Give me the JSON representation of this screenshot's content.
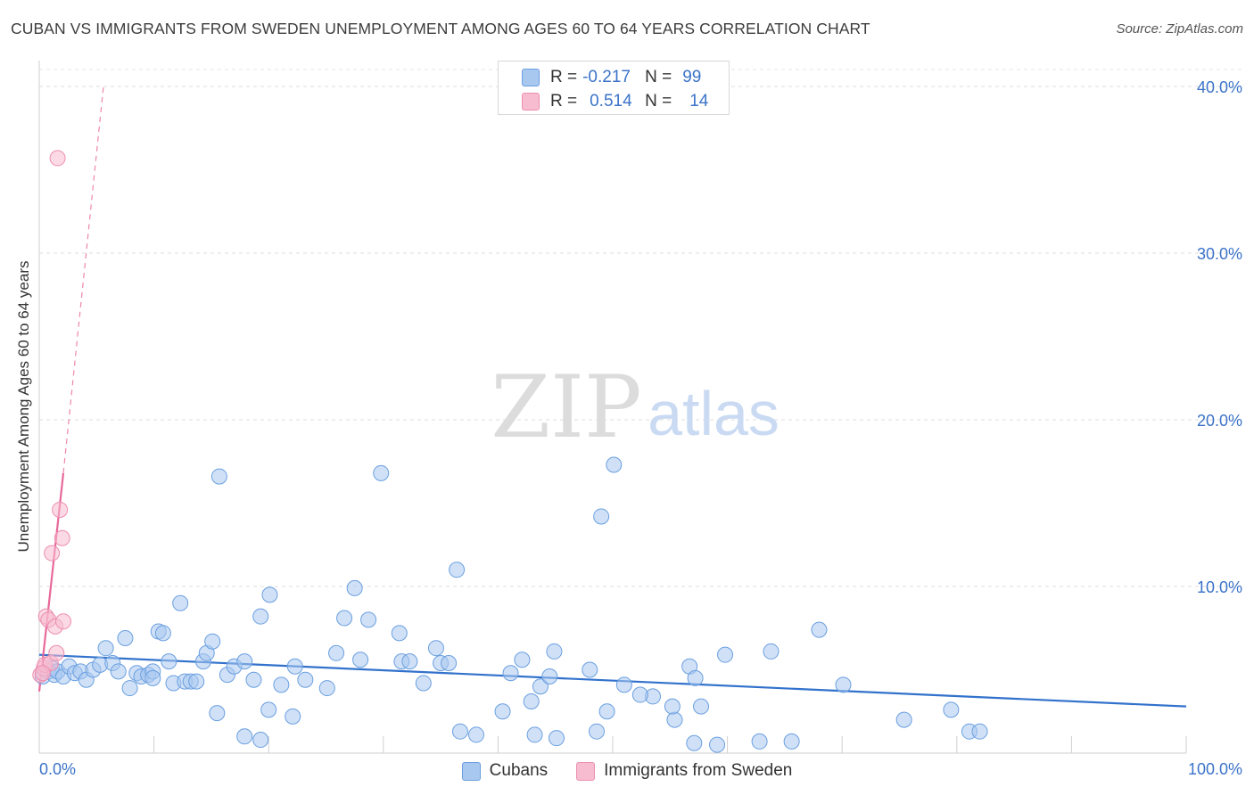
{
  "header": {
    "title": "CUBAN VS IMMIGRANTS FROM SWEDEN UNEMPLOYMENT AMONG AGES 60 TO 64 YEARS CORRELATION CHART",
    "source": "Source: ZipAtlas.com"
  },
  "watermark": {
    "zip": "ZIP",
    "atlas": "atlas"
  },
  "legend": {
    "rows": [
      {
        "r_label": "R =",
        "r_value": "-0.217",
        "n_label": "N =",
        "n_value": "99",
        "color": "#a9c8f0",
        "border": "#6a9fe0"
      },
      {
        "r_label": "R =",
        "r_value": "0.514",
        "n_label": "N =",
        "n_value": "14",
        "color": "#f8bcd0",
        "border": "#ec8fb0"
      }
    ]
  },
  "bottom_legend": {
    "items": [
      {
        "label": "Cubans",
        "color": "#a9c8f0",
        "border": "#6a9fe0"
      },
      {
        "label": "Immigrants from Sweden",
        "color": "#f8bcd0",
        "border": "#ec8fb0"
      }
    ]
  },
  "chart_data": {
    "type": "scatter",
    "title": "CUBAN VS IMMIGRANTS FROM SWEDEN UNEMPLOYMENT AMONG AGES 60 TO 64 YEARS CORRELATION CHART",
    "xlabel": "",
    "ylabel": "Unemployment Among Ages 60 to 64 years",
    "xlim": [
      0,
      100
    ],
    "ylim": [
      0,
      40
    ],
    "x_tick_labels": [
      "0.0%",
      "100.0%"
    ],
    "y_ticks": [
      10,
      20,
      30,
      40
    ],
    "y_tick_labels": [
      "10.0%",
      "20.0%",
      "30.0%",
      "40.0%"
    ],
    "grid": true,
    "series": [
      {
        "name": "Cubans",
        "color": "#a9c8f0",
        "edge": "#6a9fe0",
        "trend": {
          "x": [
            0,
            100
          ],
          "y": [
            5.9,
            2.8
          ],
          "color": "#3272cc"
        },
        "points": [
          [
            0.3,
            4.6
          ],
          [
            0.8,
            4.9
          ],
          [
            1.1,
            5.1
          ],
          [
            1.3,
            4.7
          ],
          [
            1.6,
            4.9
          ],
          [
            2.1,
            4.6
          ],
          [
            2.6,
            5.2
          ],
          [
            3.1,
            4.8
          ],
          [
            3.6,
            4.9
          ],
          [
            4.1,
            4.4
          ],
          [
            4.7,
            5.0
          ],
          [
            5.3,
            5.3
          ],
          [
            5.8,
            6.3
          ],
          [
            6.4,
            5.4
          ],
          [
            6.9,
            4.9
          ],
          [
            7.5,
            6.9
          ],
          [
            7.9,
            3.9
          ],
          [
            8.5,
            4.8
          ],
          [
            8.9,
            4.6
          ],
          [
            9.5,
            4.7
          ],
          [
            9.9,
            4.9
          ],
          [
            10.4,
            7.3
          ],
          [
            10.8,
            7.2
          ],
          [
            11.3,
            5.5
          ],
          [
            11.7,
            4.2
          ],
          [
            12.3,
            9.0
          ],
          [
            12.7,
            4.3
          ],
          [
            13.2,
            4.3
          ],
          [
            13.7,
            4.3
          ],
          [
            14.3,
            5.5
          ],
          [
            14.6,
            6.0
          ],
          [
            15.1,
            6.7
          ],
          [
            15.5,
            2.4
          ],
          [
            15.7,
            16.6
          ],
          [
            16.4,
            4.7
          ],
          [
            17.0,
            5.2
          ],
          [
            17.9,
            5.5
          ],
          [
            18.7,
            4.4
          ],
          [
            19.3,
            8.2
          ],
          [
            20.1,
            9.5
          ],
          [
            21.1,
            4.1
          ],
          [
            22.3,
            5.2
          ],
          [
            23.2,
            4.4
          ],
          [
            25.1,
            3.9
          ],
          [
            25.9,
            6.0
          ],
          [
            26.6,
            8.1
          ],
          [
            27.5,
            9.9
          ],
          [
            28.0,
            5.6
          ],
          [
            28.7,
            8.0
          ],
          [
            29.8,
            16.8
          ],
          [
            31.4,
            7.2
          ],
          [
            31.6,
            5.5
          ],
          [
            32.3,
            5.5
          ],
          [
            33.5,
            4.2
          ],
          [
            34.6,
            6.3
          ],
          [
            35.0,
            5.4
          ],
          [
            35.7,
            5.4
          ],
          [
            36.4,
            11.0
          ],
          [
            41.1,
            4.8
          ],
          [
            42.1,
            5.6
          ],
          [
            42.9,
            3.1
          ],
          [
            43.7,
            4.0
          ],
          [
            44.5,
            4.6
          ],
          [
            44.9,
            6.1
          ],
          [
            48.0,
            5.0
          ],
          [
            49.0,
            14.2
          ],
          [
            50.1,
            17.3
          ],
          [
            51.0,
            4.1
          ],
          [
            53.5,
            3.4
          ],
          [
            55.4,
            2.0
          ],
          [
            56.7,
            5.2
          ],
          [
            57.2,
            4.5
          ],
          [
            57.7,
            2.8
          ],
          [
            59.8,
            5.9
          ],
          [
            63.8,
            6.1
          ],
          [
            68.0,
            7.4
          ],
          [
            70.1,
            4.1
          ],
          [
            75.4,
            2.0
          ],
          [
            79.5,
            2.6
          ],
          [
            81.1,
            1.3
          ],
          [
            82.0,
            1.3
          ],
          [
            55.2,
            2.8
          ],
          [
            9.9,
            4.5
          ],
          [
            22.1,
            2.2
          ],
          [
            19.3,
            0.8
          ],
          [
            17.9,
            1.0
          ],
          [
            20.0,
            2.6
          ],
          [
            36.7,
            1.3
          ],
          [
            38.1,
            1.1
          ],
          [
            40.4,
            2.5
          ],
          [
            43.2,
            1.1
          ],
          [
            45.1,
            0.9
          ],
          [
            48.6,
            1.3
          ],
          [
            49.5,
            2.5
          ],
          [
            52.4,
            3.5
          ],
          [
            57.1,
            0.6
          ],
          [
            59.1,
            0.5
          ],
          [
            62.8,
            0.7
          ],
          [
            65.6,
            0.7
          ]
        ]
      },
      {
        "name": "Immigrants from Sweden",
        "color": "#f8bcd0",
        "edge": "#ec8fb0",
        "trend": {
          "x": [
            0.0,
            2.1
          ],
          "y": [
            3.7,
            16.8
          ],
          "dashed_to": [
            5.6,
            40.0
          ],
          "color": "#e8689a"
        },
        "points": [
          [
            0.1,
            4.7
          ],
          [
            0.4,
            5.1
          ],
          [
            0.5,
            5.3
          ],
          [
            0.6,
            8.2
          ],
          [
            0.8,
            8.0
          ],
          [
            1.0,
            5.4
          ],
          [
            1.1,
            12.0
          ],
          [
            1.4,
            7.6
          ],
          [
            1.5,
            6.0
          ],
          [
            1.6,
            35.7
          ],
          [
            1.8,
            14.6
          ],
          [
            2.0,
            12.9
          ],
          [
            2.1,
            7.9
          ],
          [
            0.3,
            4.8
          ]
        ]
      }
    ]
  }
}
